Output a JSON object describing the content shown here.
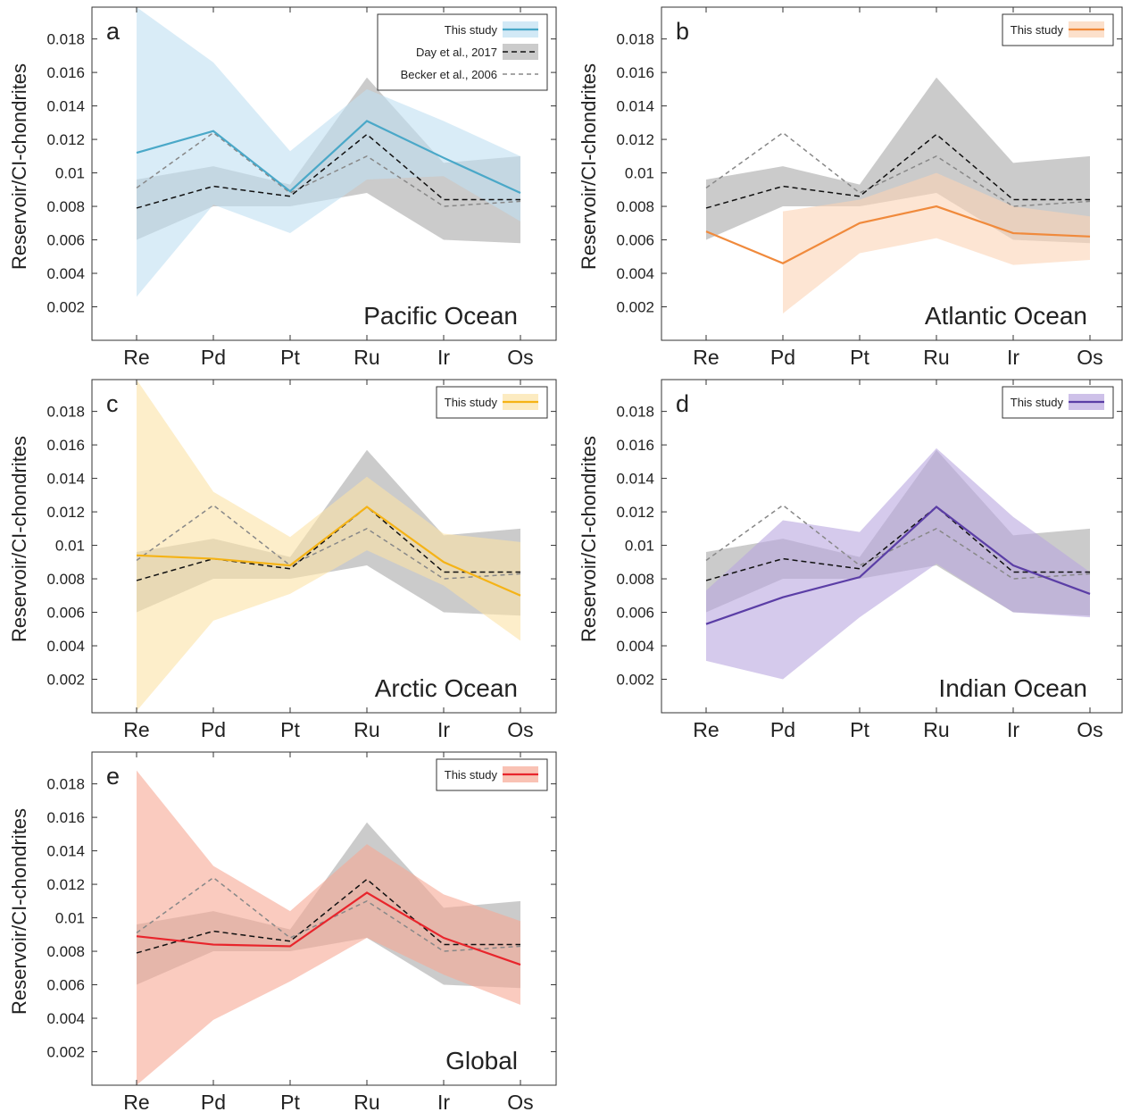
{
  "chart_data": [
    {
      "type": "line",
      "panel_label": "a",
      "annotation": "Pacific Ocean",
      "ylabel": "Reservoir/CI-chondrites",
      "categories": [
        "Re",
        "Pd",
        "Pt",
        "Ru",
        "Ir",
        "Os"
      ],
      "ylim": [
        0,
        0.0199
      ],
      "yticks": [
        0.002,
        0.004,
        0.006,
        0.008,
        0.01,
        0.012,
        0.014,
        0.016,
        0.018
      ],
      "series": [
        {
          "name": "This study",
          "color": "#4aa8c8",
          "band_color": "#bfe0f2",
          "values": [
            0.0112,
            0.0125,
            0.0089,
            0.0131,
            0.0109,
            0.0088
          ],
          "lower": [
            0.0026,
            0.0081,
            0.0064,
            0.0096,
            0.0098,
            0.0071
          ],
          "upper": [
            0.0199,
            0.0166,
            0.0113,
            0.015,
            0.0131,
            0.011
          ]
        },
        {
          "name": "Day et al., 2017",
          "color": "#111111",
          "band_color": "#b5b5b5",
          "dash": "6,4",
          "values": [
            0.0079,
            0.0092,
            0.0086,
            0.0123,
            0.0084,
            0.0084
          ],
          "lower": [
            0.006,
            0.008,
            0.008,
            0.0088,
            0.006,
            0.0058
          ],
          "upper": [
            0.0096,
            0.0104,
            0.0093,
            0.0157,
            0.0106,
            0.011
          ]
        },
        {
          "name": "Becker et al., 2006",
          "color": "#888888",
          "dash": "5,4",
          "values": [
            0.0091,
            0.0124,
            0.0088,
            0.011,
            0.008,
            0.0083
          ]
        }
      ]
    },
    {
      "type": "line",
      "panel_label": "b",
      "annotation": "Atlantic Ocean",
      "ylabel": "Reservoir/CI-chondrites",
      "categories": [
        "Re",
        "Pd",
        "Pt",
        "Ru",
        "Ir",
        "Os"
      ],
      "ylim": [
        0,
        0.0199
      ],
      "yticks": [
        0.002,
        0.004,
        0.006,
        0.008,
        0.01,
        0.012,
        0.014,
        0.016,
        0.018
      ],
      "series": [
        {
          "name": "This study",
          "color": "#f08a3c",
          "band_color": "#fbd3b5",
          "values": [
            0.0065,
            0.0046,
            0.007,
            0.008,
            0.0064,
            0.0062
          ],
          "lower": [
            null,
            0.0016,
            0.0052,
            0.0061,
            0.0045,
            0.0048
          ],
          "upper": [
            null,
            0.0077,
            0.0084,
            0.01,
            0.008,
            0.0074
          ]
        },
        {
          "color": "#111111",
          "band_color": "#b5b5b5",
          "dash": "6,4",
          "values": [
            0.0079,
            0.0092,
            0.0086,
            0.0123,
            0.0084,
            0.0084
          ],
          "lower": [
            0.006,
            0.008,
            0.008,
            0.0088,
            0.006,
            0.0058
          ],
          "upper": [
            0.0096,
            0.0104,
            0.0093,
            0.0157,
            0.0106,
            0.011
          ]
        },
        {
          "color": "#888888",
          "dash": "5,4",
          "values": [
            0.0091,
            0.0124,
            0.0088,
            0.011,
            0.008,
            0.0083
          ]
        }
      ]
    },
    {
      "type": "line",
      "panel_label": "c",
      "annotation": "Arctic Ocean",
      "ylabel": "Reservoir/CI-chondrites",
      "categories": [
        "Re",
        "Pd",
        "Pt",
        "Ru",
        "Ir",
        "Os"
      ],
      "ylim": [
        0,
        0.0199
      ],
      "yticks": [
        0.002,
        0.004,
        0.006,
        0.008,
        0.01,
        0.012,
        0.014,
        0.016,
        0.018
      ],
      "series": [
        {
          "name": "This study",
          "color": "#f5b316",
          "band_color": "#fbe3a6",
          "values": [
            0.0094,
            0.0092,
            0.0088,
            0.0123,
            0.009,
            0.007
          ],
          "lower": [
            0.0001,
            0.0055,
            0.0071,
            0.0097,
            0.0076,
            0.0043
          ],
          "upper": [
            0.0199,
            0.0132,
            0.0105,
            0.0141,
            0.0107,
            0.0102
          ]
        },
        {
          "color": "#111111",
          "band_color": "#b5b5b5",
          "dash": "6,4",
          "values": [
            0.0079,
            0.0092,
            0.0086,
            0.0123,
            0.0084,
            0.0084
          ],
          "lower": [
            0.006,
            0.008,
            0.008,
            0.0088,
            0.006,
            0.0058
          ],
          "upper": [
            0.0096,
            0.0104,
            0.0093,
            0.0157,
            0.0106,
            0.011
          ]
        },
        {
          "color": "#888888",
          "dash": "5,4",
          "values": [
            0.0091,
            0.0124,
            0.0088,
            0.011,
            0.008,
            0.0083
          ]
        }
      ]
    },
    {
      "type": "line",
      "panel_label": "d",
      "annotation": "Indian Ocean",
      "ylabel": "Reservoir/CI-chondrites",
      "categories": [
        "Re",
        "Pd",
        "Pt",
        "Ru",
        "Ir",
        "Os"
      ],
      "ylim": [
        0,
        0.0199
      ],
      "yticks": [
        0.002,
        0.004,
        0.006,
        0.008,
        0.01,
        0.012,
        0.014,
        0.016,
        0.018
      ],
      "series": [
        {
          "name": "This study",
          "color": "#5b3ea6",
          "band_color": "#b9a6e0",
          "values": [
            0.0053,
            0.0069,
            0.0081,
            0.0123,
            0.0088,
            0.0071
          ],
          "lower": [
            0.0031,
            0.002,
            0.0057,
            0.0089,
            0.006,
            0.0057
          ],
          "upper": [
            0.0073,
            0.0115,
            0.0108,
            0.0158,
            0.0117,
            0.0084
          ]
        },
        {
          "color": "#111111",
          "band_color": "#b5b5b5",
          "dash": "6,4",
          "values": [
            0.0079,
            0.0092,
            0.0086,
            0.0123,
            0.0084,
            0.0084
          ],
          "lower": [
            0.006,
            0.008,
            0.008,
            0.0088,
            0.006,
            0.0058
          ],
          "upper": [
            0.0096,
            0.0104,
            0.0093,
            0.0157,
            0.0106,
            0.011
          ]
        },
        {
          "color": "#888888",
          "dash": "5,4",
          "values": [
            0.0091,
            0.0124,
            0.0088,
            0.011,
            0.008,
            0.0083
          ]
        }
      ]
    },
    {
      "type": "line",
      "panel_label": "e",
      "annotation": "Global",
      "ylabel": "Reservoir/CI-chondrites",
      "categories": [
        "Re",
        "Pd",
        "Pt",
        "Ru",
        "Ir",
        "Os"
      ],
      "ylim": [
        0,
        0.0199
      ],
      "yticks": [
        0.002,
        0.004,
        0.006,
        0.008,
        0.01,
        0.012,
        0.014,
        0.016,
        0.018
      ],
      "series": [
        {
          "name": "This study",
          "color": "#e8252c",
          "band_color": "#f6a894",
          "values": [
            0.0089,
            0.0084,
            0.0083,
            0.0115,
            0.0088,
            0.0072
          ],
          "lower": [
            0.0,
            0.0039,
            0.0062,
            0.0088,
            0.0066,
            0.0048
          ],
          "upper": [
            0.0188,
            0.0131,
            0.0104,
            0.0144,
            0.0114,
            0.0098
          ]
        },
        {
          "color": "#111111",
          "band_color": "#b5b5b5",
          "dash": "6,4",
          "values": [
            0.0079,
            0.0092,
            0.0086,
            0.0123,
            0.0084,
            0.0084
          ],
          "lower": [
            0.006,
            0.008,
            0.008,
            0.0088,
            0.006,
            0.0058
          ],
          "upper": [
            0.0096,
            0.0104,
            0.0093,
            0.0157,
            0.0106,
            0.011
          ]
        },
        {
          "color": "#888888",
          "dash": "5,4",
          "values": [
            0.0091,
            0.0124,
            0.0088,
            0.011,
            0.008,
            0.0083
          ]
        }
      ]
    }
  ]
}
